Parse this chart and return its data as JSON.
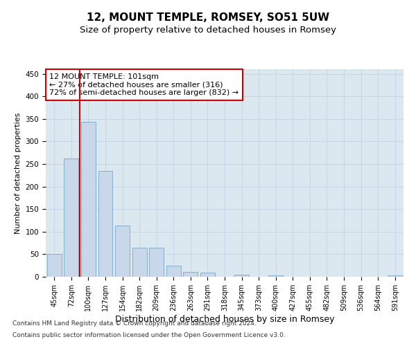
{
  "title1": "12, MOUNT TEMPLE, ROMSEY, SO51 5UW",
  "title2": "Size of property relative to detached houses in Romsey",
  "xlabel": "Distribution of detached houses by size in Romsey",
  "ylabel": "Number of detached properties",
  "categories": [
    "45sqm",
    "72sqm",
    "100sqm",
    "127sqm",
    "154sqm",
    "182sqm",
    "209sqm",
    "236sqm",
    "263sqm",
    "291sqm",
    "318sqm",
    "345sqm",
    "373sqm",
    "400sqm",
    "427sqm",
    "455sqm",
    "482sqm",
    "509sqm",
    "536sqm",
    "564sqm",
    "591sqm"
  ],
  "values": [
    50,
    262,
    343,
    234,
    113,
    65,
    65,
    25,
    10,
    9,
    0,
    4,
    0,
    3,
    0,
    0,
    0,
    0,
    0,
    0,
    3
  ],
  "bar_color": "#c8d8ea",
  "bar_edge_color": "#7aa8c8",
  "vline_x_index": 1.5,
  "vline_color": "#cc0000",
  "annotation_text": "12 MOUNT TEMPLE: 101sqm\n← 27% of detached houses are smaller (316)\n72% of semi-detached houses are larger (832) →",
  "annotation_box_color": "#ffffff",
  "annotation_box_edge_color": "#cc0000",
  "ylim": [
    0,
    460
  ],
  "yticks": [
    0,
    50,
    100,
    150,
    200,
    250,
    300,
    350,
    400,
    450
  ],
  "grid_color": "#c8d4e8",
  "background_color": "#dce8f0",
  "footer_line1": "Contains HM Land Registry data © Crown copyright and database right 2024.",
  "footer_line2": "Contains public sector information licensed under the Open Government Licence v3.0.",
  "title1_fontsize": 11,
  "title2_fontsize": 9.5,
  "xlabel_fontsize": 9,
  "ylabel_fontsize": 8,
  "tick_fontsize": 7,
  "annotation_fontsize": 8,
  "footer_fontsize": 6.5
}
